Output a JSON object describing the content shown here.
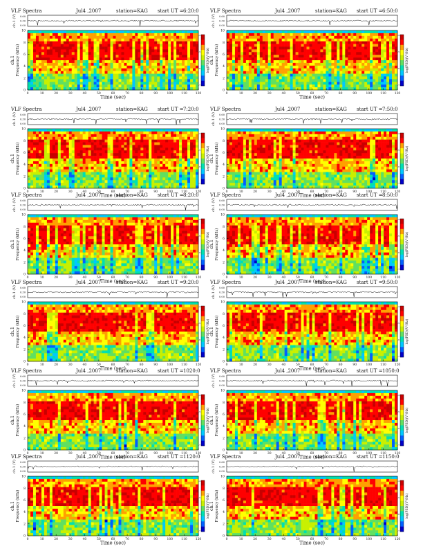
{
  "figure_type": "grid of VLF spectrogram panels with waveform strip",
  "colors": {
    "spectrogram_palette": [
      "#0000c8",
      "#0060ff",
      "#00c8ff",
      "#00e0b0",
      "#60e060",
      "#c8f000",
      "#ffff00",
      "#ffa000",
      "#ff0000",
      "#c80000"
    ],
    "trace": "#000000",
    "axes": "#000000"
  },
  "common": {
    "product": "VLF Spectra",
    "date": "Jul4 ,2007",
    "station": "station=KAG",
    "start_prefix": "start  UT =",
    "strip_ylabel": "ch.1 (V)",
    "spec_ylabel_channel": "ch.1",
    "spec_ylabel": "Frequency  (kHz)",
    "xlabel": "Time  (sec)",
    "colorbar_label": "log(PSD)(V²/Hz)"
  },
  "chart_data": [
    {
      "type": "heatmap",
      "panel": "row1-left",
      "start_time": "6:20:0",
      "xlim": [
        0,
        120
      ],
      "ylim_khz": [
        0,
        10
      ],
      "strip_ylim_v": [
        0,
        0.6
      ]
    },
    {
      "type": "heatmap",
      "panel": "row1-right",
      "start_time": "6:50:0",
      "xlim": [
        0,
        120
      ],
      "ylim_khz": [
        0,
        10
      ],
      "strip_ylim_v": [
        0,
        0.6
      ]
    },
    {
      "type": "heatmap",
      "panel": "row2-left",
      "start_time": "7:20:0",
      "xlim": [
        0,
        120
      ],
      "ylim_khz": [
        0,
        10
      ],
      "strip_ylim_v": [
        0,
        0.6
      ]
    },
    {
      "type": "heatmap",
      "panel": "row2-right",
      "start_time": "7:50:0",
      "xlim": [
        0,
        120
      ],
      "ylim_khz": [
        0,
        10
      ],
      "strip_ylim_v": [
        0,
        0.6
      ]
    },
    {
      "type": "heatmap",
      "panel": "row3-left",
      "start_time": "8:20:0",
      "xlim": [
        0,
        120
      ],
      "ylim_khz": [
        0,
        10
      ],
      "strip_ylim_v": [
        0,
        0.6
      ]
    },
    {
      "type": "heatmap",
      "panel": "row3-right",
      "start_time": "8:50:0",
      "xlim": [
        0,
        120
      ],
      "ylim_khz": [
        0,
        10
      ],
      "strip_ylim_v": [
        0,
        0.6
      ]
    },
    {
      "type": "heatmap",
      "panel": "row4-left",
      "start_time": "9:20:0",
      "xlim": [
        0,
        120
      ],
      "ylim_khz": [
        0,
        10
      ],
      "strip_ylim_v": [
        0,
        0.6
      ]
    },
    {
      "type": "heatmap",
      "panel": "row4-right",
      "start_time": "9:50:0",
      "xlim": [
        0,
        120
      ],
      "ylim_khz": [
        0,
        10
      ],
      "strip_ylim_v": [
        0,
        0.6
      ]
    },
    {
      "type": "heatmap",
      "panel": "row5-left",
      "start_time": "1020:0",
      "xlim": [
        0,
        120
      ],
      "ylim_khz": [
        0,
        10
      ],
      "strip_ylim_v": [
        0,
        0.6
      ]
    },
    {
      "type": "heatmap",
      "panel": "row5-right",
      "start_time": "1050:0",
      "xlim": [
        0,
        120
      ],
      "ylim_khz": [
        0,
        10
      ],
      "strip_ylim_v": [
        0,
        0.6
      ]
    },
    {
      "type": "heatmap",
      "panel": "row6-left",
      "start_time": "1120:0",
      "xlim": [
        0,
        120
      ],
      "ylim_khz": [
        0,
        10
      ],
      "strip_ylim_v": [
        0,
        0.6
      ]
    },
    {
      "type": "heatmap",
      "panel": "row6-right",
      "start_time": "1150:0",
      "xlim": [
        0,
        120
      ],
      "ylim_khz": [
        0,
        10
      ],
      "strip_ylim_v": [
        0,
        0.6
      ]
    }
  ],
  "axes": {
    "x_ticks": [
      0,
      10,
      20,
      30,
      40,
      50,
      60,
      70,
      80,
      90,
      100,
      110,
      120
    ],
    "y_ticks": [
      0,
      2,
      4,
      6,
      8,
      10
    ],
    "strip_ticks": [
      "0.60",
      "0.30",
      "0.00"
    ],
    "colorbar_ticks": [
      "-4",
      "-5",
      "-6",
      "-7"
    ]
  }
}
